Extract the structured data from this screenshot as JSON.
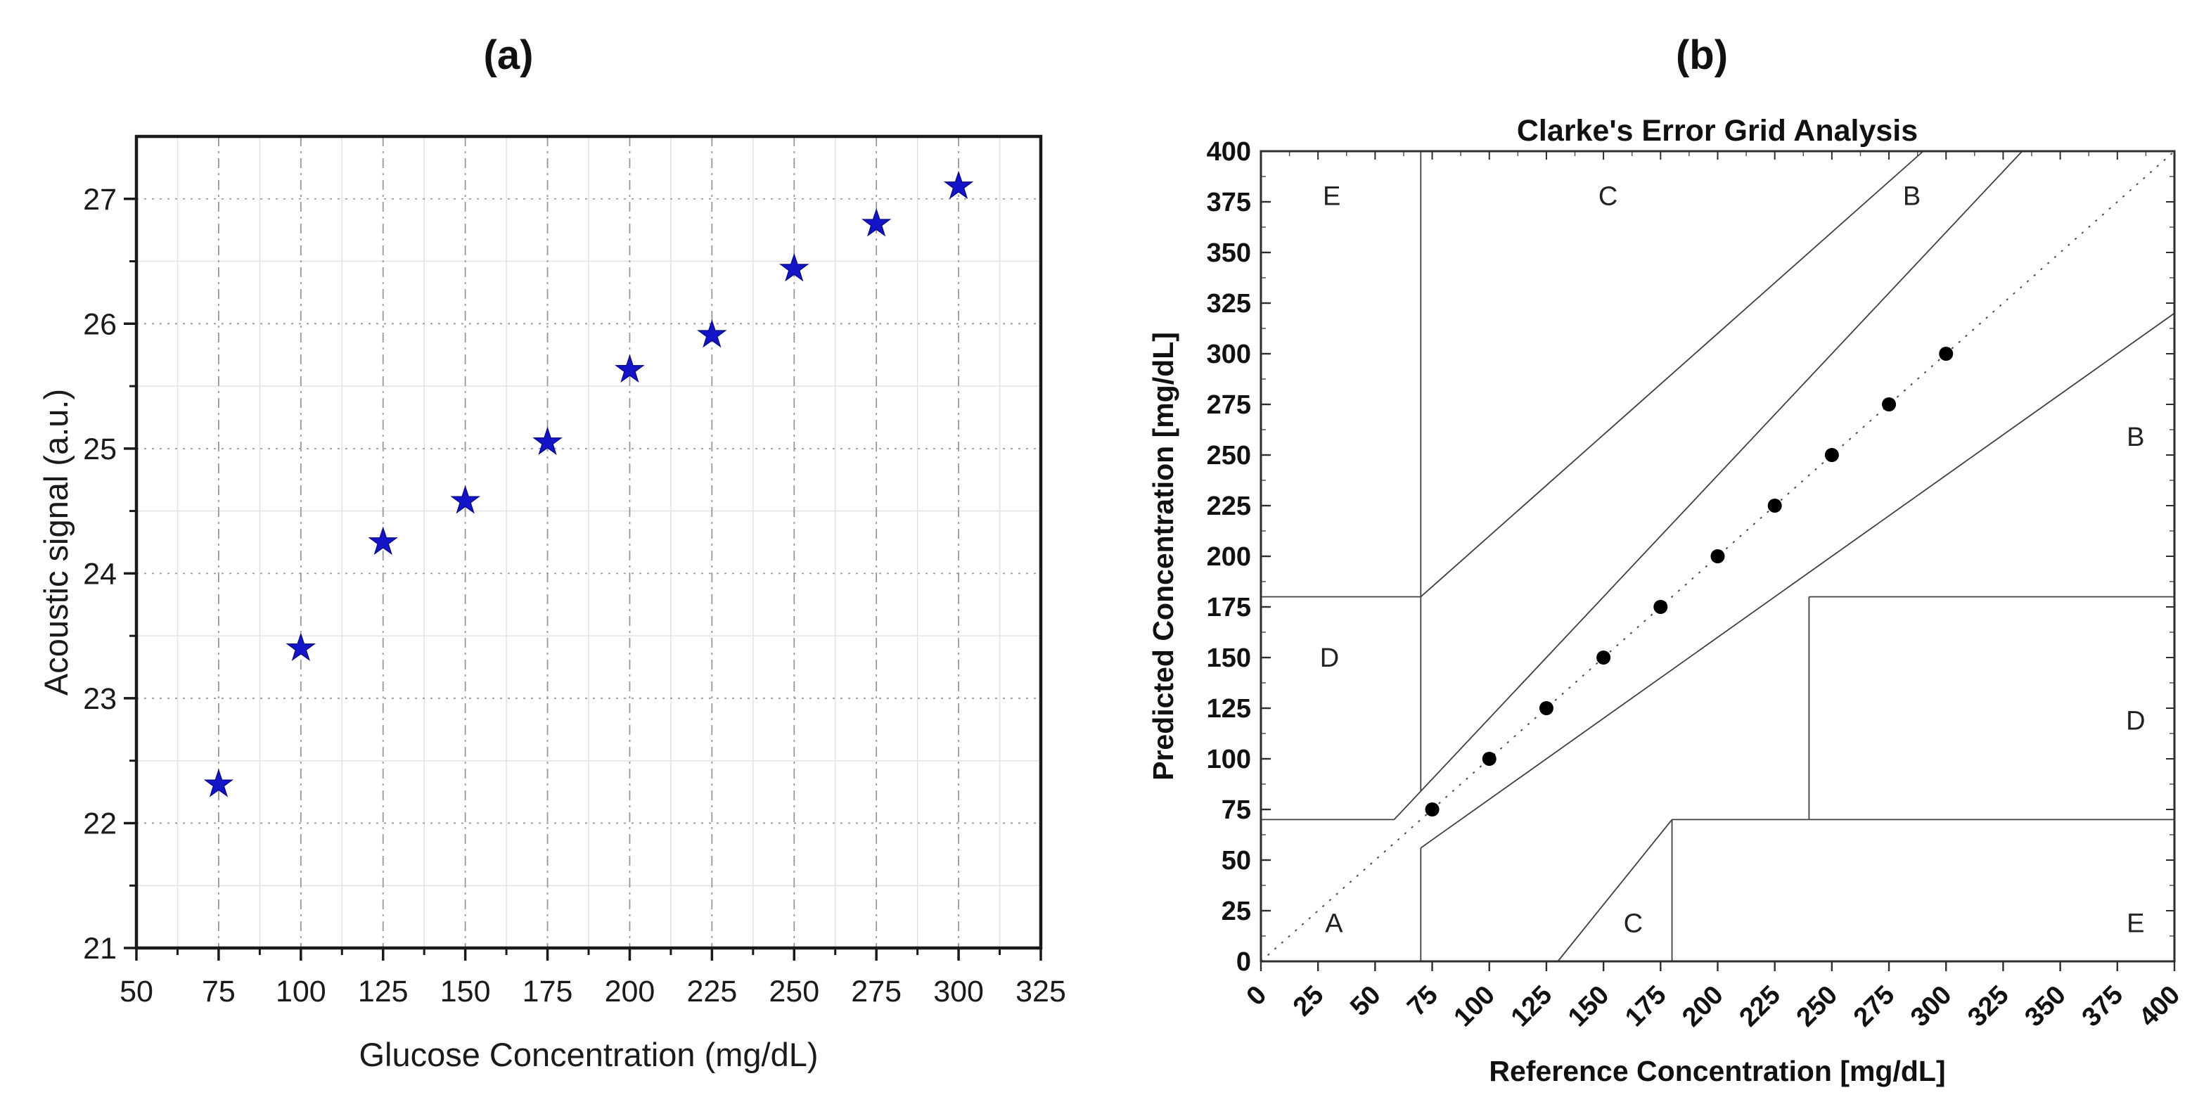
{
  "figure": {
    "background": "#ffffff",
    "accent_color": "#1414c8",
    "line_color": "#404040"
  },
  "chart_data": [
    {
      "id": "acoustic-vs-glucose",
      "type": "scatter",
      "panel_label": "(a)",
      "title": "",
      "xlabel": "Glucose Concentration (mg/dL)",
      "ylabel": "Acoustic signal (a.u.)",
      "xlim": [
        50,
        325
      ],
      "ylim": [
        21,
        27.5
      ],
      "xticks": [
        50,
        75,
        100,
        125,
        150,
        175,
        200,
        225,
        250,
        275,
        300,
        325
      ],
      "yticks": [
        21,
        22,
        23,
        24,
        25,
        26,
        27
      ],
      "x_minor_step": 12.5,
      "y_minor_step": 0.5,
      "grid": true,
      "legend": "none",
      "marker": "star",
      "marker_color": "#1414c8",
      "series": [
        {
          "name": "Acoustic signal",
          "x": [
            75,
            100,
            125,
            150,
            175,
            200,
            225,
            250,
            275,
            300
          ],
          "y": [
            22.31,
            23.4,
            24.25,
            24.58,
            25.05,
            25.63,
            25.91,
            26.44,
            26.8,
            27.1
          ]
        }
      ]
    },
    {
      "id": "clarke-error-grid",
      "type": "scatter",
      "panel_label": "(b)",
      "title": "Clarke's Error Grid Analysis",
      "xlabel": "Reference Concentration [mg/dL]",
      "ylabel": "Predicted Concentration [mg/dL]",
      "xlim": [
        0,
        400
      ],
      "ylim": [
        0,
        400
      ],
      "xticks": [
        0,
        25,
        50,
        75,
        100,
        125,
        150,
        175,
        200,
        225,
        250,
        275,
        300,
        325,
        350,
        375,
        400
      ],
      "yticks": [
        0,
        25,
        50,
        75,
        100,
        125,
        150,
        175,
        200,
        225,
        250,
        275,
        300,
        325,
        350,
        375,
        400
      ],
      "xtick_rotation": -45,
      "minor_tick_step": 12.5,
      "grid": false,
      "legend": "none",
      "marker": "circle",
      "marker_color": "#000000",
      "series": [
        {
          "name": "Predicted vs Reference",
          "x": [
            75,
            100,
            125,
            150,
            175,
            200,
            225,
            250,
            275,
            300
          ],
          "y": [
            75,
            100,
            125,
            150,
            175,
            200,
            225,
            250,
            275,
            300
          ]
        }
      ],
      "identity_line": {
        "x": [
          0,
          400
        ],
        "y": [
          0,
          400
        ],
        "style": "dotted"
      },
      "zone_lines": [
        {
          "x1": 0,
          "y1": 70,
          "x2": 58.333,
          "y2": 70
        },
        {
          "x1": 58.333,
          "y1": 70,
          "x2": 333.333,
          "y2": 400
        },
        {
          "x1": 70,
          "y1": 84,
          "x2": 70,
          "y2": 400
        },
        {
          "x1": 0,
          "y1": 180,
          "x2": 70,
          "y2": 180
        },
        {
          "x1": 70,
          "y1": 180,
          "x2": 290,
          "y2": 400
        },
        {
          "x1": 70,
          "y1": 0,
          "x2": 70,
          "y2": 56
        },
        {
          "x1": 70,
          "y1": 56,
          "x2": 400,
          "y2": 320
        },
        {
          "x1": 180,
          "y1": 0,
          "x2": 180,
          "y2": 70
        },
        {
          "x1": 180,
          "y1": 70,
          "x2": 400,
          "y2": 70
        },
        {
          "x1": 240,
          "y1": 70,
          "x2": 240,
          "y2": 180
        },
        {
          "x1": 240,
          "y1": 180,
          "x2": 400,
          "y2": 180
        },
        {
          "x1": 130,
          "y1": 0,
          "x2": 180,
          "y2": 70
        }
      ],
      "zone_labels": [
        {
          "text": "E",
          "x": 31,
          "y": 378
        },
        {
          "text": "C",
          "x": 152,
          "y": 378
        },
        {
          "text": "B",
          "x": 285,
          "y": 378
        },
        {
          "text": "D",
          "x": 30,
          "y": 150
        },
        {
          "text": "B",
          "x": 383,
          "y": 259
        },
        {
          "text": "D",
          "x": 383,
          "y": 119
        },
        {
          "text": "A",
          "x": 32,
          "y": 19
        },
        {
          "text": "C",
          "x": 163,
          "y": 19
        },
        {
          "text": "E",
          "x": 383,
          "y": 19
        }
      ]
    }
  ]
}
